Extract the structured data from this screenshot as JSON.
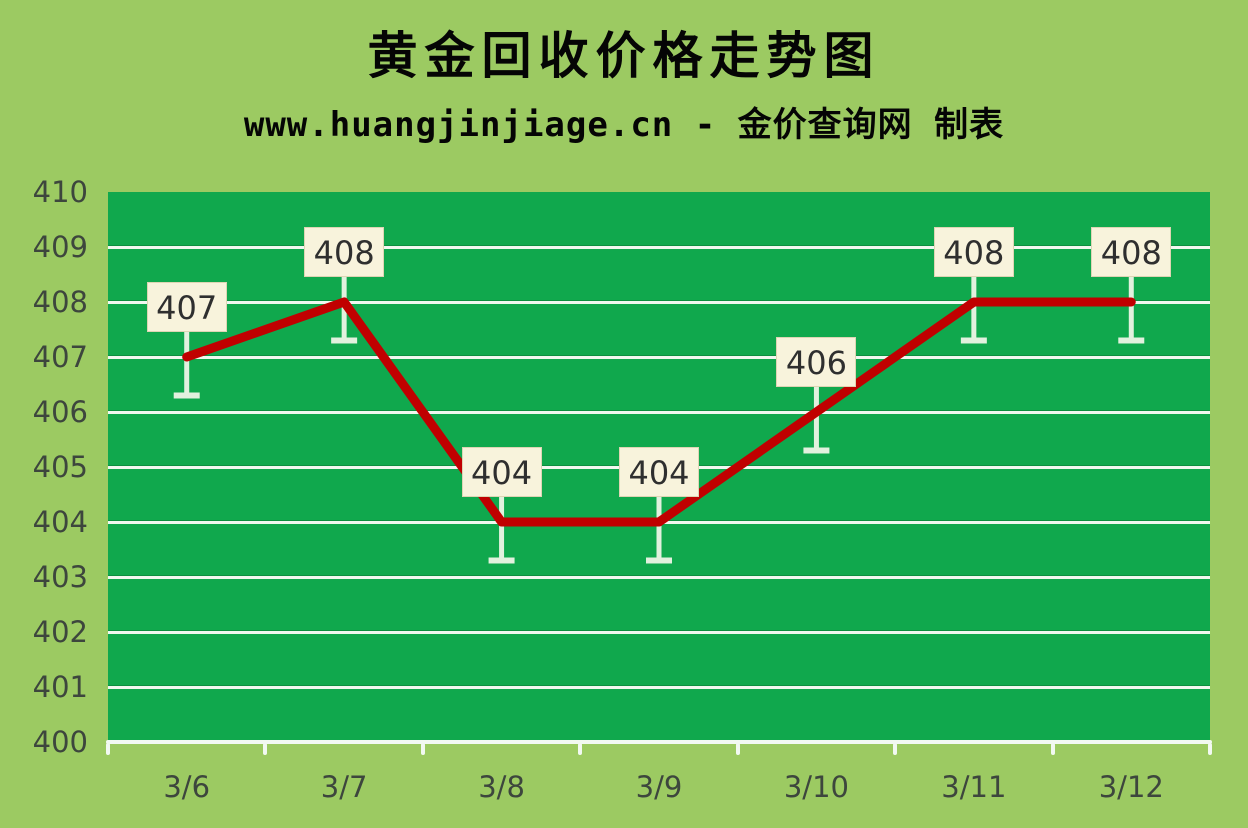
{
  "page": {
    "title": "黄金回收价格走势图",
    "subtitle": "www.huangjinjiage.cn - 金价查询网 制表"
  },
  "chart_data": {
    "type": "line",
    "title": "黄金回收价格走势图",
    "subtitle": "www.huangjinjiage.cn - 金价查询网 制表",
    "categories": [
      "3/6",
      "3/7",
      "3/8",
      "3/9",
      "3/10",
      "3/11",
      "3/12"
    ],
    "series": [
      {
        "name": "黄金回收价格",
        "values": [
          407,
          408,
          404,
          404,
          406,
          408,
          408
        ]
      }
    ],
    "data_labels": [
      "407",
      "408",
      "404",
      "404",
      "406",
      "408",
      "408"
    ],
    "xlabel": "",
    "ylabel": "",
    "ylim": [
      400,
      410
    ],
    "ytick_interval": 1,
    "yticks": [
      400,
      401,
      402,
      403,
      404,
      405,
      406,
      407,
      408,
      409,
      410
    ],
    "grid": "horizontal-white",
    "legend": "none",
    "marker": "callout-box-with-whisker",
    "colors": {
      "page_bg": "#9cca62",
      "plot_bg": "#10a84d",
      "gridline": "#f0f8f0",
      "axis_line": "#f2f9f2",
      "line": "#c00000",
      "label_box_bg": "#f8f3dc",
      "label_box_border": "#ded5b4",
      "whisker": "#e2f1de",
      "label_text": "#2f2f2f",
      "axis_text": "#3d463d",
      "title_text": "#050505"
    }
  }
}
